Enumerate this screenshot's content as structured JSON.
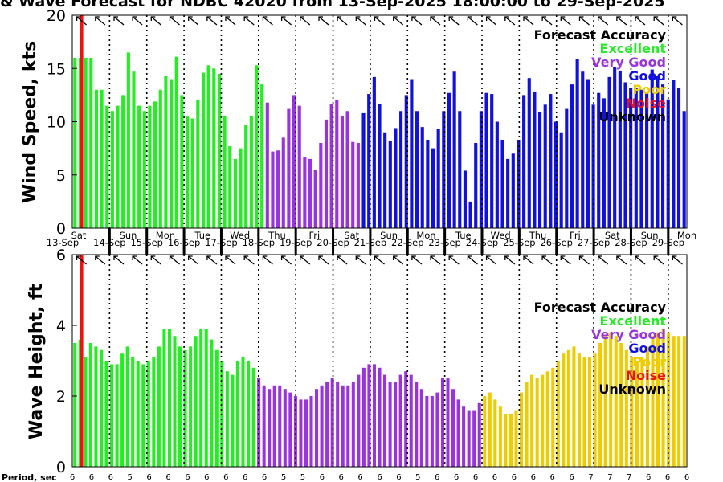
{
  "title": "& Wave Forecast for NDBC 42020 from 13-Sep-2025 18:00:00 to 29-Sep-2025",
  "legend": {
    "title": "Forecast Accuracy",
    "items": [
      {
        "label": "Excellent",
        "color": "#22ee22"
      },
      {
        "label": "Very Good",
        "color": "#9933dd"
      },
      {
        "label": "Good",
        "color": "#1111dd"
      },
      {
        "label": "Poor",
        "color": "#eecc00"
      },
      {
        "label": "Noise",
        "color": "#ee1111"
      },
      {
        "label": "Unknown",
        "color": "#000000"
      }
    ]
  },
  "period_label": "Period, sec",
  "periods": [
    "6",
    "6",
    "6",
    "5",
    "6",
    "6",
    "6",
    "6",
    "6",
    "6",
    "6",
    "5",
    "5",
    "6",
    "6",
    "6",
    "6",
    "6",
    "5",
    "6",
    "6",
    "6",
    "6",
    "6",
    "6",
    "6",
    "6",
    "7",
    "7",
    "7",
    "6",
    "6",
    "6"
  ],
  "days": [
    {
      "dow": "Sat",
      "date": "13-Sep"
    },
    {
      "dow": "Sun",
      "date": "14-Sep"
    },
    {
      "dow": "Mon",
      "date": "15-Sep"
    },
    {
      "dow": "Tue",
      "date": "16-Sep"
    },
    {
      "dow": "Wed",
      "date": "17-Sep"
    },
    {
      "dow": "Thu",
      "date": "18-Sep"
    },
    {
      "dow": "Fri",
      "date": "19-Sep"
    },
    {
      "dow": "Sat",
      "date": "20-Sep"
    },
    {
      "dow": "Sun",
      "date": "21-Sep"
    },
    {
      "dow": "Mon",
      "date": "22-Sep"
    },
    {
      "dow": "Tue",
      "date": "23-Sep"
    },
    {
      "dow": "Wed",
      "date": "24-Sep"
    },
    {
      "dow": "Thu",
      "date": "25-Sep"
    },
    {
      "dow": "Fri",
      "date": "26-Sep"
    },
    {
      "dow": "Sat",
      "date": "27-Sep"
    },
    {
      "dow": "Sun",
      "date": "28-Sep"
    },
    {
      "dow": "Mon",
      "date": "29-Sep"
    }
  ],
  "chart_data": [
    {
      "type": "bar",
      "ylabel": "Wind Speed, kts",
      "ylim": [
        0,
        20
      ],
      "yticks": [
        "0",
        "5",
        "10",
        "15",
        "20"
      ],
      "x_range_days": [
        0,
        16.5
      ],
      "now_marker_day": 0.25,
      "values": [
        16,
        16,
        16,
        16,
        13,
        13,
        11.5,
        11,
        11.5,
        12.5,
        16.5,
        14.7,
        11.5,
        11,
        11.5,
        11.9,
        13,
        14.3,
        14,
        16.1,
        12.5,
        10.5,
        10.3,
        12,
        14.6,
        15.3,
        15,
        14.5,
        10.5,
        7.7,
        6.5,
        7.5,
        9.7,
        10.5,
        15.3,
        13.5,
        11.8,
        7.2,
        7.3,
        8.5,
        11.2,
        12.5,
        11.5,
        6.7,
        6.5,
        5.5,
        8,
        10.2,
        11.7,
        12,
        10.5,
        11,
        8.1,
        8,
        10.8,
        12.6,
        14.2,
        11.7,
        9,
        8.2,
        9.4,
        11,
        12.5,
        14,
        11,
        9.5,
        8.3,
        7.5,
        9.3,
        11,
        12.7,
        14.7,
        11,
        5.4,
        2.5,
        8,
        11,
        12.7,
        12.6,
        10,
        8.3,
        6.5,
        7,
        8.3,
        12.5,
        14.1,
        12.8,
        10.9,
        11.6,
        12.6,
        10,
        9,
        11.2,
        13.5,
        15.9,
        14.7,
        14,
        11.6,
        12.7,
        12.2,
        14.2,
        15.1,
        14.8,
        13.7,
        13.2,
        13.2,
        13,
        12.7,
        14.9,
        14.3,
        13.5,
        12.1,
        13.9,
        13.2,
        11
      ]
    },
    {
      "type": "bar",
      "ylabel": "Wave Height, ft",
      "ylim": [
        0,
        6
      ],
      "yticks": [
        "0",
        "2",
        "4",
        "6"
      ],
      "x_range_days": [
        0,
        16.5
      ],
      "now_marker_day": 0.25,
      "values": [
        3.5,
        3.6,
        3.1,
        3.5,
        3.4,
        3.3,
        3,
        2.9,
        2.9,
        3.2,
        3.4,
        3.1,
        3,
        2.9,
        3,
        3.1,
        3.4,
        3.9,
        3.9,
        3.7,
        3.4,
        3.3,
        3.4,
        3.7,
        3.9,
        3.9,
        3.6,
        3.3,
        3,
        2.7,
        2.6,
        3,
        3.1,
        3,
        2.8,
        2.5,
        2.3,
        2.2,
        2.3,
        2.3,
        2.2,
        2.1,
        2,
        1.9,
        1.9,
        2,
        2.2,
        2.3,
        2.4,
        2.5,
        2.4,
        2.3,
        2.3,
        2.4,
        2.6,
        2.8,
        2.9,
        2.9,
        2.8,
        2.6,
        2.4,
        2.4,
        2.6,
        2.7,
        2.6,
        2.4,
        2.2,
        2,
        2,
        2.1,
        2.5,
        2.5,
        2.2,
        1.9,
        1.7,
        1.6,
        1.6,
        1.8,
        2,
        2.1,
        1.9,
        1.7,
        1.5,
        1.5,
        1.6,
        2.1,
        2.4,
        2.6,
        2.5,
        2.6,
        2.7,
        2.8,
        3,
        3.2,
        3.3,
        3.4,
        3.2,
        3.1,
        3.1,
        3.2,
        3.5,
        3.7,
        3.8,
        3.7,
        3.5,
        3.3,
        3.1,
        3,
        3.1,
        3.4,
        3.7,
        3.8,
        3.9,
        3.8,
        3.7,
        3.7,
        3.7
      ]
    }
  ],
  "wind_colors": "GGGGGGGGGGGGGGGGGGGGGGGGGGGGGGGGGGGGVVVVVVVVVVVVVVVVVVBBBBBBBBBBBBBBBBBBBBBBBBBBBBBBBBBBBBBBBBBBBBBBBBBBBBBBBBBBBBBBBBBBB",
  "wave_colors": "GGGGGGGGGGGGGGGGGGGGGGGGGGGGGGGGGGGVVVVVVVVVVVVVVVVVVVVVVVVVVVVVVVVVVVVVVVVVVVYYYYYYYYYYYYYYYYYYYYYYYYYYYYYYYYYYYYYYYYYYYYY"
}
